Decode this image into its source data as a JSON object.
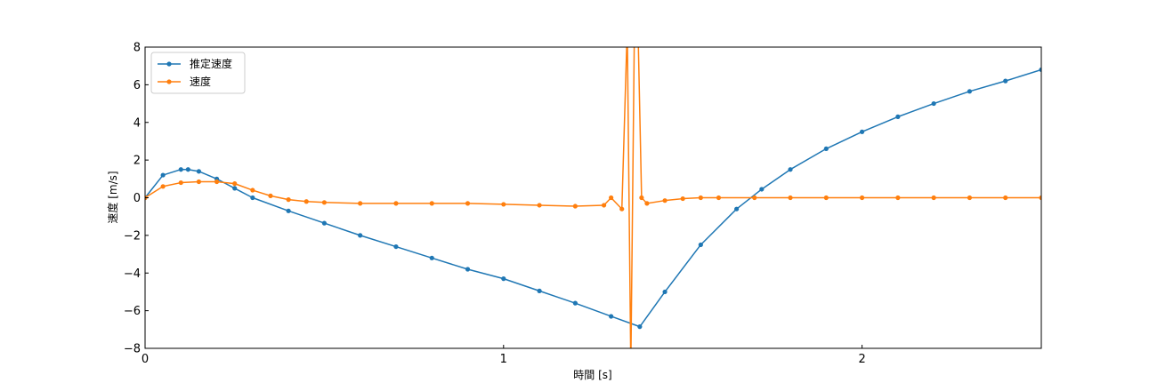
{
  "chart_data": {
    "type": "line",
    "title": "",
    "xlabel": "時間 [s]",
    "ylabel": "速度 [m/s]",
    "xlim": [
      0,
      2.5
    ],
    "ylim": [
      -8,
      8
    ],
    "xticks": [
      0,
      1,
      2
    ],
    "yticks": [
      -8,
      -6,
      -4,
      -2,
      0,
      2,
      4,
      6,
      8
    ],
    "grid": false,
    "legend": {
      "placement": "top-left"
    },
    "series": [
      {
        "name": "推定速度",
        "color": "#1f77b4",
        "marker": "circle",
        "x": [
          0,
          0.05,
          0.1,
          0.12,
          0.15,
          0.2,
          0.25,
          0.3,
          0.4,
          0.5,
          0.6,
          0.7,
          0.8,
          0.9,
          1.0,
          1.1,
          1.2,
          1.3,
          1.38,
          1.45,
          1.55,
          1.65,
          1.72,
          1.8,
          1.9,
          2.0,
          2.1,
          2.2,
          2.3,
          2.4,
          2.5
        ],
        "y": [
          0,
          1.2,
          1.5,
          1.5,
          1.4,
          1.0,
          0.5,
          0.0,
          -0.7,
          -1.35,
          -2.0,
          -2.6,
          -3.2,
          -3.8,
          -4.3,
          -4.95,
          -5.6,
          -6.3,
          -6.85,
          -5.0,
          -2.5,
          -0.6,
          0.45,
          1.5,
          2.6,
          3.5,
          4.3,
          5.0,
          5.65,
          6.2,
          6.8
        ]
      },
      {
        "name": "速度",
        "color": "#ff7f0e",
        "marker": "circle",
        "x": [
          0,
          0.05,
          0.1,
          0.15,
          0.2,
          0.25,
          0.3,
          0.35,
          0.4,
          0.45,
          0.5,
          0.6,
          0.7,
          0.8,
          0.9,
          1.0,
          1.1,
          1.2,
          1.28,
          1.3,
          1.33,
          1.345,
          1.355,
          1.365,
          1.375,
          1.385,
          1.4,
          1.45,
          1.5,
          1.55,
          1.6,
          1.7,
          1.8,
          1.9,
          2.0,
          2.1,
          2.2,
          2.3,
          2.4,
          2.5
        ],
        "y": [
          0,
          0.6,
          0.8,
          0.85,
          0.85,
          0.75,
          0.4,
          0.1,
          -0.1,
          -0.2,
          -0.25,
          -0.3,
          -0.3,
          -0.3,
          -0.3,
          -0.35,
          -0.4,
          -0.45,
          -0.4,
          0.0,
          -0.6,
          9.0,
          -9.0,
          9.0,
          9.0,
          0.0,
          -0.3,
          -0.15,
          -0.05,
          0.0,
          0.0,
          0.0,
          0.0,
          0.0,
          0.0,
          0.0,
          0.0,
          0.0,
          0.0,
          0.0
        ]
      }
    ]
  }
}
